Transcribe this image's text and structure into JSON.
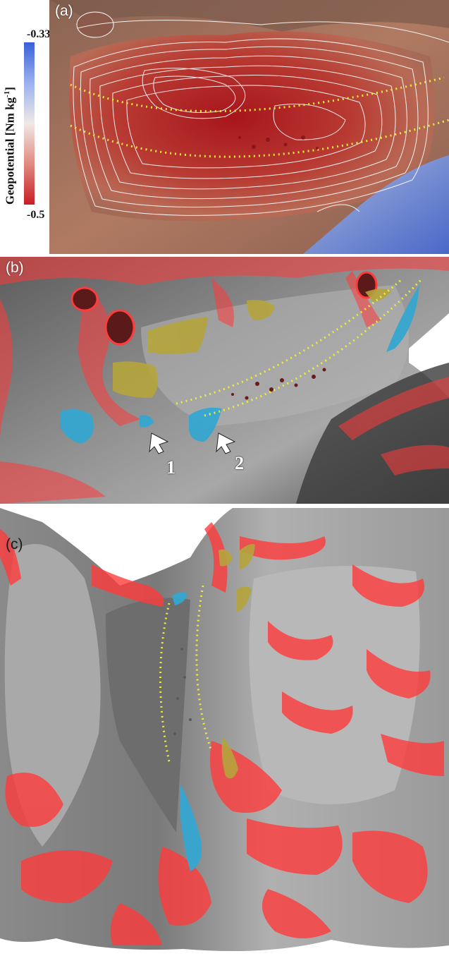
{
  "colorbar": {
    "max": "-0.33",
    "min": "-0.5",
    "label_main": "Geopotential [Nm kg",
    "label_exp": "-1",
    "label_end": "]"
  },
  "panels": [
    {
      "label": "(a)"
    },
    {
      "label": "(b)",
      "arrows": [
        "1",
        "2"
      ]
    },
    {
      "label": "(c)"
    }
  ],
  "colors": {
    "low_geopotential": "#c81d25",
    "high_geopotential": "#3a5fd9",
    "guide_line": "#ecec3a",
    "yellow_region": "#b5a43c",
    "blue_region": "#35a7d0",
    "steep_slope": "#ff3b3b"
  }
}
